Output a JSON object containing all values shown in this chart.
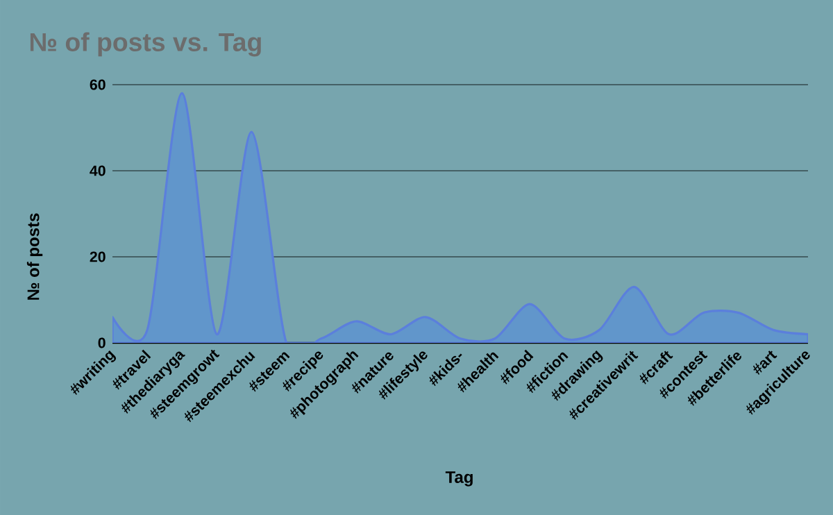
{
  "chart_data": {
    "type": "area",
    "title": "№ of posts vs. Tag",
    "xlabel": "Tag",
    "ylabel": "№ of posts",
    "categories": [
      "#writing",
      "#travel",
      "#thediaryga",
      "#steemgrowt",
      "#steemexchu",
      "#steem",
      "#recipe",
      "#photograph",
      "#nature",
      "#lifestyle",
      "#kids-",
      "#health",
      "#food",
      "#fiction",
      "#drawing",
      "#creativewrit",
      "#craft",
      "#contest",
      "#betterlife",
      "#art",
      "#agriculture"
    ],
    "values": [
      6,
      3,
      58,
      2,
      49,
      0,
      1,
      5,
      2,
      6,
      1,
      1,
      9,
      1,
      3,
      13,
      2,
      7,
      7,
      3,
      2
    ],
    "color": "#6196cb",
    "ylim": [
      0,
      60
    ],
    "yticks": [
      0,
      20,
      40,
      60
    ],
    "grid": "y"
  }
}
